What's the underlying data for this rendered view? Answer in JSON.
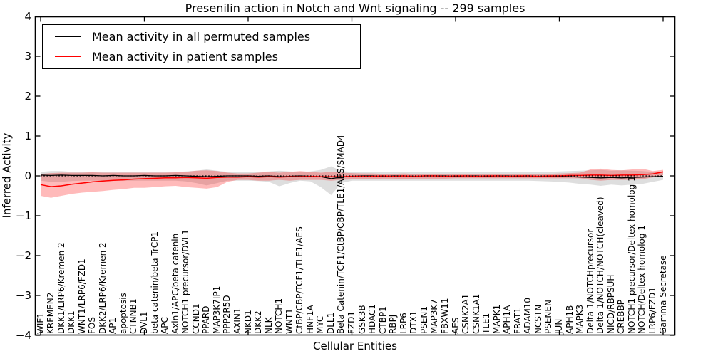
{
  "legend": {
    "entries": [
      {
        "label": "Mean activity in all permuted samples",
        "color": "#000000"
      },
      {
        "label": "Mean activity in patient samples",
        "color": "#ff0000"
      }
    ]
  },
  "chart_data": {
    "type": "line",
    "title": "Presenilin action in Notch and Wnt signaling -- 299 samples",
    "xlabel": "Cellular Entities",
    "ylabel": "Inferred Activity",
    "ylim": [
      -4,
      4
    ],
    "yticks": [
      4,
      3,
      2,
      1,
      0,
      -1,
      -2,
      -3,
      -4
    ],
    "xtick_positions": [
      0,
      10,
      20,
      30,
      40,
      50,
      60
    ],
    "grid": false,
    "legend_position": "upper left",
    "reference_line": {
      "y": 0,
      "style": "dotted",
      "color": "#000000"
    },
    "categories": [
      "WIF1",
      "KREMEN2",
      "DKK1/LRP6/Kremen 2",
      "DKK1",
      "WNT1/LRP6/FZD1",
      "FOS",
      "DKK2/LRP6/Kremen 2",
      "AP1",
      "apoptosis",
      "CTNNB1",
      "DVL1",
      "beta catenin/beta TrCP1",
      "APC",
      "Axin1/APC/beta catenin",
      "NOTCH1 precursor/DVL1",
      "CCND1",
      "PPARD",
      "MAP3K7IP1",
      "PPP2R5D",
      "AXIN1",
      "NKD1",
      "DKK2",
      "NLK",
      "NOTCH1",
      "WNT1",
      "CtBP/CBP/TCF1/TLE1/AES",
      "HNF1A",
      "MYC",
      "DLL1",
      "Beta Catenin/TCF1/CtBP/CBP/TLE1/AES/SMAD4",
      "FZD1",
      "GSK3B",
      "HDAC1",
      "CTBP1",
      "RBPJ",
      "LRP6",
      "DTX1",
      "PSEN1",
      "MAP3K7",
      "FBXW11",
      "AES",
      "CSNK2A1",
      "CSNK1A1",
      "TLE1",
      "MAPK1",
      "APH1A",
      "FRAT1",
      "ADAM10",
      "NCSTN",
      "PSENEN",
      "JUN",
      "APH1B",
      "MAPK3",
      "Delta 1/NOTCHprecursor",
      "Delta 1/NOTCH/NOTCH(cleaved)",
      "NICD/RBPSUH",
      "CREBBP",
      "NOTCH1 precursor/Deltex homolog 1",
      "NOTCH/Deltex homolog 1",
      "LRP6/FZD1",
      "Gamma Secretase"
    ],
    "series": [
      {
        "name": "Mean activity in all permuted samples",
        "color": "#000000",
        "band_fill": "rgba(0,0,0,0.13)",
        "values": [
          0.02,
          0.01,
          0.02,
          0.01,
          0.01,
          0.01,
          0.0,
          0.01,
          0.0,
          0.0,
          0.01,
          0.0,
          0.0,
          0.01,
          0.0,
          -0.01,
          -0.02,
          -0.01,
          0.0,
          0.0,
          0.0,
          -0.01,
          0.0,
          -0.02,
          -0.01,
          0.0,
          -0.01,
          -0.02,
          -0.07,
          -0.03,
          -0.01,
          0.0,
          0.0,
          -0.01,
          0.0,
          0.0,
          -0.01,
          0.0,
          0.0,
          0.0,
          -0.01,
          0.0,
          0.0,
          -0.01,
          0.0,
          0.0,
          -0.01,
          0.0,
          -0.01,
          -0.01,
          -0.02,
          -0.02,
          -0.03,
          -0.04,
          -0.05,
          -0.04,
          -0.05,
          -0.04,
          -0.03,
          -0.02,
          -0.01
        ],
        "band_upper": [
          0.1,
          0.12,
          0.12,
          0.1,
          0.1,
          0.1,
          0.1,
          0.1,
          0.1,
          0.1,
          0.1,
          0.1,
          0.1,
          0.1,
          0.11,
          0.13,
          0.16,
          0.13,
          0.1,
          0.1,
          0.1,
          0.1,
          0.11,
          0.13,
          0.11,
          0.1,
          0.11,
          0.15,
          0.24,
          0.12,
          0.1,
          0.1,
          0.1,
          0.1,
          0.1,
          0.1,
          0.1,
          0.1,
          0.1,
          0.1,
          0.1,
          0.1,
          0.1,
          0.1,
          0.1,
          0.1,
          0.1,
          0.1,
          0.1,
          0.1,
          0.11,
          0.12,
          0.13,
          0.14,
          0.15,
          0.13,
          0.14,
          0.13,
          0.12,
          0.1,
          0.11
        ],
        "band_lower": [
          -0.12,
          -0.15,
          -0.15,
          -0.13,
          -0.12,
          -0.12,
          -0.12,
          -0.12,
          -0.12,
          -0.12,
          -0.12,
          -0.12,
          -0.12,
          -0.12,
          -0.14,
          -0.18,
          -0.24,
          -0.18,
          -0.12,
          -0.12,
          -0.12,
          -0.13,
          -0.15,
          -0.26,
          -0.18,
          -0.12,
          -0.14,
          -0.28,
          -0.48,
          -0.18,
          -0.12,
          -0.12,
          -0.12,
          -0.12,
          -0.12,
          -0.12,
          -0.12,
          -0.12,
          -0.12,
          -0.12,
          -0.12,
          -0.12,
          -0.12,
          -0.12,
          -0.12,
          -0.12,
          -0.12,
          -0.12,
          -0.13,
          -0.14,
          -0.15,
          -0.17,
          -0.2,
          -0.22,
          -0.25,
          -0.22,
          -0.24,
          -0.22,
          -0.2,
          -0.15,
          -0.1
        ]
      },
      {
        "name": "Mean activity in patient samples",
        "color": "#ff0000",
        "band_fill": "rgba(255,0,0,0.27)",
        "values": [
          -0.22,
          -0.27,
          -0.25,
          -0.21,
          -0.18,
          -0.15,
          -0.13,
          -0.11,
          -0.1,
          -0.08,
          -0.07,
          -0.06,
          -0.05,
          -0.05,
          -0.04,
          -0.05,
          -0.06,
          -0.04,
          -0.03,
          -0.03,
          -0.02,
          -0.03,
          -0.02,
          -0.03,
          -0.02,
          -0.02,
          -0.01,
          -0.02,
          -0.02,
          -0.02,
          -0.01,
          -0.01,
          -0.01,
          0.0,
          -0.01,
          0.0,
          -0.01,
          0.0,
          0.0,
          -0.01,
          0.0,
          0.0,
          -0.01,
          0.0,
          0.0,
          -0.01,
          0.0,
          0.0,
          -0.01,
          0.0,
          0.0,
          0.01,
          0.01,
          0.02,
          0.02,
          0.01,
          0.02,
          0.02,
          0.03,
          0.05,
          0.1
        ],
        "band_upper": [
          0.05,
          0.07,
          0.08,
          0.08,
          0.08,
          0.09,
          0.08,
          0.08,
          0.08,
          0.08,
          0.08,
          0.08,
          0.08,
          0.09,
          0.1,
          0.13,
          0.14,
          0.12,
          0.08,
          0.06,
          0.06,
          0.08,
          0.1,
          0.08,
          0.1,
          0.12,
          0.1,
          0.08,
          0.1,
          0.08,
          0.07,
          0.06,
          0.06,
          0.05,
          0.05,
          0.06,
          0.05,
          0.05,
          0.05,
          0.05,
          0.05,
          0.05,
          0.05,
          0.05,
          0.05,
          0.05,
          0.05,
          0.05,
          0.05,
          0.05,
          0.06,
          0.07,
          0.08,
          0.16,
          0.18,
          0.15,
          0.14,
          0.16,
          0.18,
          0.12,
          0.15
        ],
        "band_lower": [
          -0.5,
          -0.55,
          -0.5,
          -0.45,
          -0.42,
          -0.4,
          -0.38,
          -0.35,
          -0.33,
          -0.3,
          -0.3,
          -0.28,
          -0.26,
          -0.25,
          -0.28,
          -0.3,
          -0.32,
          -0.28,
          -0.15,
          -0.1,
          -0.1,
          -0.12,
          -0.12,
          -0.1,
          -0.12,
          -0.1,
          -0.1,
          -0.1,
          -0.12,
          -0.1,
          -0.09,
          -0.08,
          -0.08,
          -0.07,
          -0.07,
          -0.08,
          -0.07,
          -0.07,
          -0.07,
          -0.07,
          -0.06,
          -0.06,
          -0.06,
          -0.06,
          -0.06,
          -0.06,
          -0.06,
          -0.06,
          -0.06,
          -0.06,
          -0.06,
          -0.06,
          -0.06,
          -0.1,
          -0.12,
          -0.1,
          -0.1,
          -0.1,
          -0.08,
          -0.04,
          0.02
        ]
      }
    ]
  }
}
